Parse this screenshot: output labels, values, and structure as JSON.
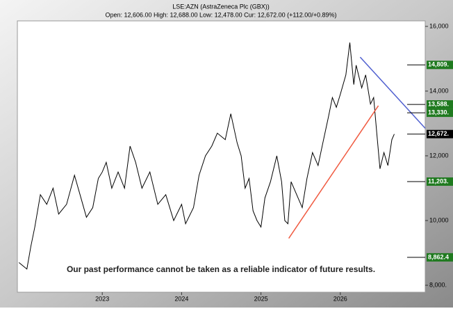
{
  "chart_data": {
    "type": "line",
    "title": "LSE:AZN (AstraZeneca Plc (GBX))",
    "subtitle": "Open: 12,606.00 High: 12,688.00 Low: 12,478.00 Cur: 12,672.00 (+112.00/+0.89%)",
    "annotation": "Our past performance cannot be taken as a reliable indicator of future results.",
    "xlim": [
      2021.93,
      2027.07
    ],
    "xticks": [
      2023,
      2024,
      2025,
      2026
    ],
    "ylim": [
      7785,
      16170
    ],
    "yticks": [
      {
        "value": 8000,
        "label": "8,000."
      },
      {
        "value": 10000,
        "label": "10,000"
      },
      {
        "value": 12000,
        "label": "12,000"
      },
      {
        "value": 14000,
        "label": "14,000"
      },
      {
        "value": 16000,
        "label": "16,000"
      }
    ],
    "series": [
      {
        "color": "#000000",
        "x": [
          2021.95,
          2022.05,
          2022.1,
          2022.15,
          2022.22,
          2022.3,
          2022.38,
          2022.45,
          2022.55,
          2022.65,
          2022.72,
          2022.8,
          2022.88,
          2022.95,
          2023.0,
          2023.05,
          2023.12,
          2023.2,
          2023.28,
          2023.35,
          2023.42,
          2023.5,
          2023.6,
          2023.7,
          2023.8,
          2023.9,
          2024.0,
          2024.05,
          2024.15,
          2024.22,
          2024.3,
          2024.38,
          2024.45,
          2024.55,
          2024.62,
          2024.7,
          2024.75,
          2024.8,
          2024.85,
          2024.9,
          2024.95,
          2025.0,
          2025.05,
          2025.12,
          2025.2,
          2025.26,
          2025.3,
          2025.34,
          2025.38,
          2025.45,
          2025.52,
          2025.58,
          2025.65,
          2025.72,
          2025.78,
          2025.85,
          2025.9,
          2025.95,
          2026.0,
          2026.07,
          2026.12,
          2026.17,
          2026.2,
          2026.27,
          2026.32,
          2026.38,
          2026.42,
          2026.46,
          2026.5,
          2026.55,
          2026.6,
          2026.65,
          2026.68
        ],
        "values": [
          8700,
          8500,
          9200,
          9800,
          10800,
          10500,
          11000,
          10200,
          10500,
          11400,
          10800,
          10100,
          10400,
          11300,
          11500,
          11800,
          11000,
          11500,
          11000,
          12300,
          11800,
          11000,
          11500,
          10500,
          10800,
          10000,
          10500,
          9900,
          10400,
          11400,
          12000,
          12300,
          12700,
          12500,
          13300,
          12400,
          12000,
          11000,
          11300,
          10300,
          10000,
          9800,
          10700,
          11200,
          12000,
          11200,
          10000,
          9900,
          11200,
          10800,
          10400,
          11300,
          12100,
          11700,
          12400,
          13200,
          13800,
          13500,
          13900,
          14500,
          15500,
          14200,
          14800,
          14100,
          14500,
          13600,
          13800,
          12700,
          11600,
          12100,
          11700,
          12500,
          12672
        ]
      }
    ],
    "trend_lines": [
      {
        "color": "#f05a40",
        "x": [
          2025.35,
          2026.48
        ],
        "values": [
          9450,
          13550
        ]
      },
      {
        "color": "#5060d0",
        "x": [
          2026.25,
          2027.07
        ],
        "values": [
          15050,
          12850
        ]
      }
    ],
    "levels": [
      {
        "value": 14809,
        "label": "14,809.",
        "color": "#1f7a1f"
      },
      {
        "value": 13588,
        "label": "13,588.",
        "color": "#1f7a1f"
      },
      {
        "value": 13330,
        "label": "13,330.",
        "color": "#1f7a1f"
      },
      {
        "value": 12672,
        "label": "12,672.",
        "color": "#000000"
      },
      {
        "value": 11203,
        "label": "11,203.",
        "color": "#1f7a1f"
      },
      {
        "value": 8862.4,
        "label": "8,862.4",
        "color": "#1f7a1f"
      }
    ]
  }
}
